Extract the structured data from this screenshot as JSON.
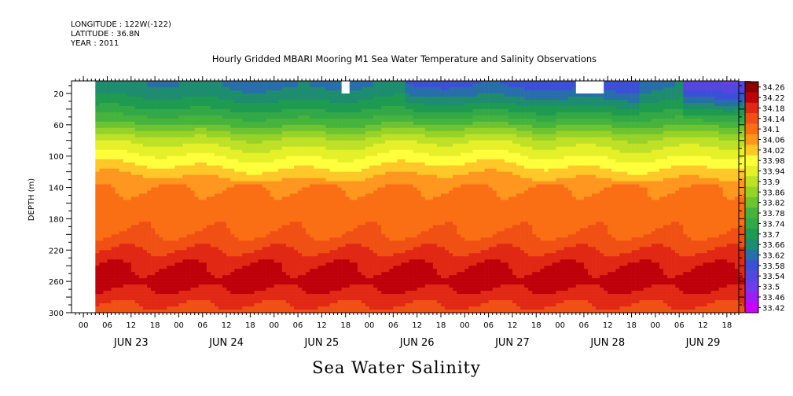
{
  "meta": {
    "longitude": "LONGITUDE : 122W(-122)",
    "latitude": "LATITUDE : 36.8N",
    "year": "YEAR : 2011"
  },
  "chart_data": {
    "type": "heatmap",
    "title": "Hourly Gridded MBARI Mooring M1 Sea Water Temperature and Salinity Observations",
    "footer": "Sea Water Salinity",
    "xlabel": "",
    "ylabel": "DEPTH (m)",
    "x_hour_ticks": [
      "00",
      "06",
      "12",
      "18",
      "00",
      "06",
      "12",
      "18",
      "00",
      "06",
      "12",
      "18",
      "00",
      "06",
      "12",
      "18",
      "00",
      "06",
      "12",
      "18",
      "00",
      "06",
      "12",
      "18",
      "00",
      "06",
      "12",
      "18"
    ],
    "x_date_labels": [
      "JUN 23",
      "JUN 24",
      "JUN 25",
      "JUN 26",
      "JUN 27",
      "JUN 28",
      "JUN 29"
    ],
    "y_ticks": [
      20,
      60,
      100,
      140,
      180,
      220,
      260,
      300
    ],
    "ylim": [
      300,
      4
    ],
    "data_start": "Jun 23 2011 03:00",
    "data_end": "Jun 29 2011 23:00",
    "missing_near_surface": [
      {
        "from": "Jun 25 17:00",
        "to": "Jun 25 18:00",
        "depth_to": 20
      },
      {
        "from": "Jun 28 04:00",
        "to": "Jun 28 10:00",
        "depth_to": 20
      }
    ],
    "depth_profile": {
      "depth": [
        10,
        20,
        40,
        60,
        80,
        100,
        120,
        140,
        160,
        180,
        200,
        220,
        240,
        260,
        280,
        300
      ],
      "salinity": [
        33.66,
        33.68,
        33.74,
        33.82,
        33.92,
        33.98,
        34.04,
        34.1,
        34.12,
        34.12,
        34.14,
        34.18,
        34.22,
        34.24,
        34.2,
        34.16
      ]
    },
    "colorbar": {
      "levels": [
        34.26,
        34.22,
        34.18,
        34.14,
        34.1,
        34.06,
        34.02,
        33.98,
        33.94,
        33.9,
        33.86,
        33.82,
        33.78,
        33.74,
        33.7,
        33.66,
        33.62,
        33.58,
        33.54,
        33.5,
        33.46,
        33.42
      ],
      "labels": [
        "34.26",
        "34.22",
        "34.18",
        "34.14",
        "34.1",
        "34.06",
        "34.02",
        "33.98",
        "33.94",
        "33.9",
        "33.86",
        "33.82",
        "33.78",
        "33.74",
        "33.7",
        "33.66",
        "33.62",
        "33.58",
        "33.54",
        "33.5",
        "33.46",
        "33.42"
      ],
      "range": [
        33.42,
        34.26
      ]
    }
  }
}
